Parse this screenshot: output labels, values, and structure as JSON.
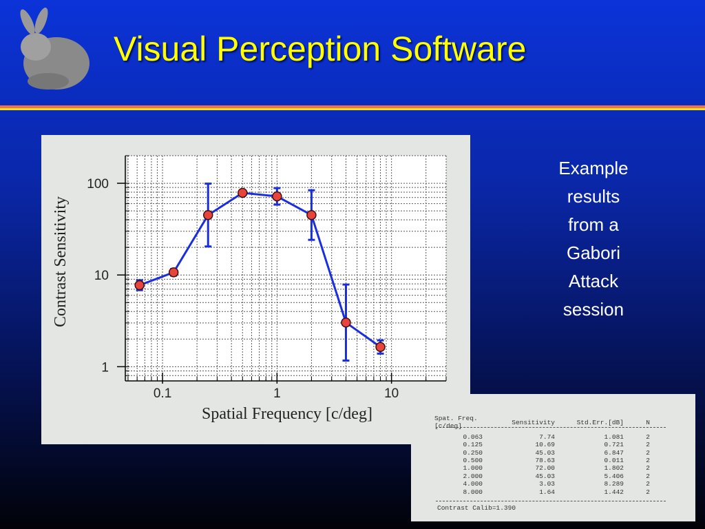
{
  "title": "Visual Perception Software",
  "caption": [
    "Example",
    "results",
    "from a",
    "Gabori",
    "Attack",
    "session"
  ],
  "chart_data": {
    "type": "line",
    "x_label": "Spatial Frequency [c/deg]",
    "y_label": "Contrast Sensitivity",
    "x": [
      0.063,
      0.125,
      0.25,
      0.5,
      1,
      2,
      4,
      8
    ],
    "series": [
      {
        "color": "#1a2ee0",
        "marker_color": "#e8443c",
        "values": [
          7.74,
          10.69,
          45.03,
          78.63,
          72.0,
          45.03,
          3.03,
          1.64
        ],
        "errors": [
          1.081,
          0.721,
          6.847,
          0.011,
          1.802,
          5.406,
          8.289,
          1.442
        ]
      }
    ],
    "xlim": [
      0.05,
      30
    ],
    "ylim": [
      0.7,
      200
    ],
    "xticks": [
      0.1,
      1,
      10
    ],
    "yticks": [
      1,
      10,
      100
    ],
    "log_x": true,
    "log_y": true,
    "grid": true
  },
  "table": {
    "header": [
      "Spat. Freq.[c/deg]",
      "Sensitivity",
      "Std.Err.[dB]",
      "N"
    ],
    "rows": [
      [
        "0.063",
        "7.74",
        "1.081",
        "2"
      ],
      [
        "0.125",
        "10.69",
        "0.721",
        "2"
      ],
      [
        "0.250",
        "45.03",
        "6.847",
        "2"
      ],
      [
        "0.500",
        "78.63",
        "0.011",
        "2"
      ],
      [
        "1.000",
        "72.00",
        "1.802",
        "2"
      ],
      [
        "2.000",
        "45.03",
        "5.406",
        "2"
      ],
      [
        "4.000",
        "3.03",
        "8.289",
        "2"
      ],
      [
        "8.000",
        "1.64",
        "1.442",
        "2"
      ]
    ],
    "footer": "Contrast Calib=1.390"
  }
}
